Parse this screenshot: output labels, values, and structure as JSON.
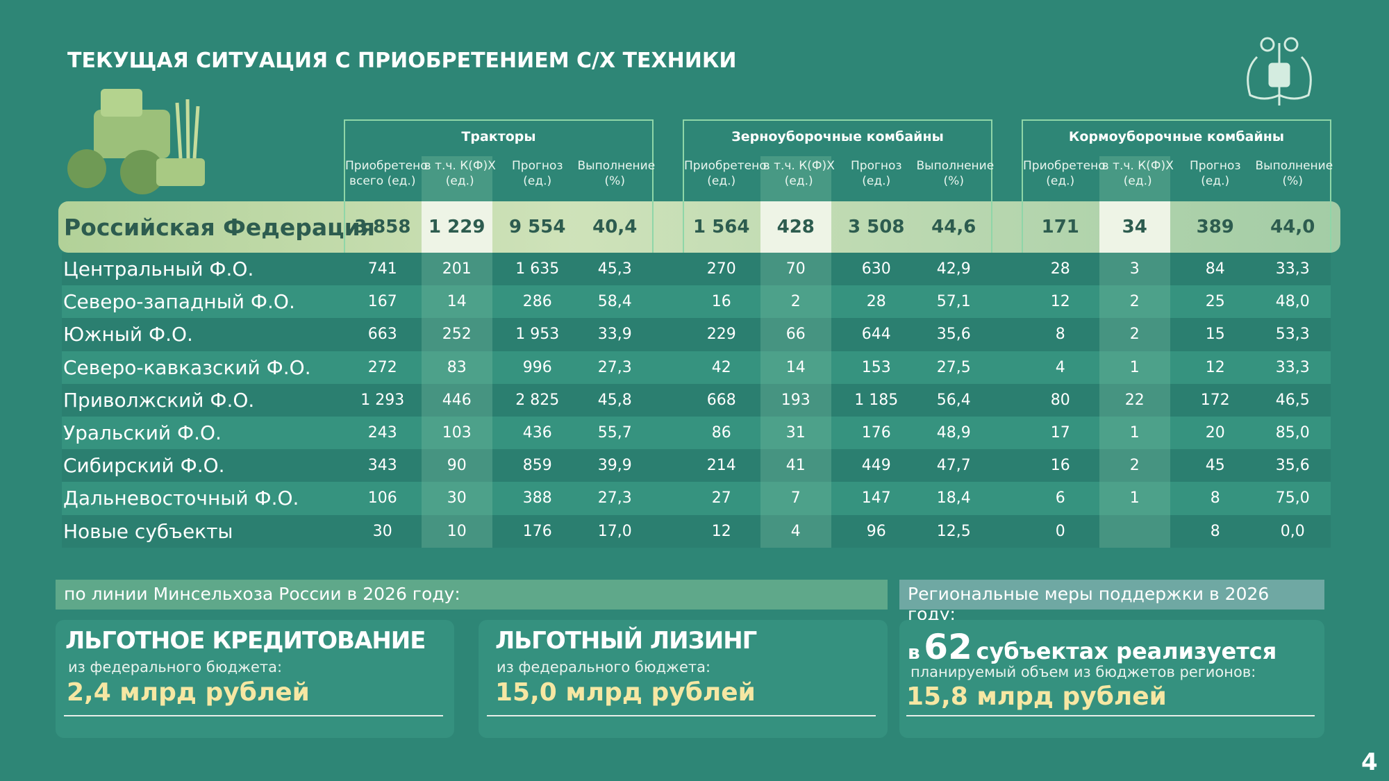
{
  "header": {
    "title": "ТЕКУЩАЯ СИТУАЦИЯ С ПРИОБРЕТЕНИЕМ С/Х ТЕХНИКИ"
  },
  "table": {
    "groups": [
      {
        "title": "Тракторы",
        "columns": [
          "Приобретено всего (ед.)",
          "в т.ч. К(Ф)Х (ед.)",
          "Прогноз (ед.)",
          "Выполнение (%)"
        ]
      },
      {
        "title": "Зерноуборочные комбайны",
        "columns": [
          "Приобретено (ед.)",
          "в т.ч. К(Ф)Х (ед.)",
          "Прогноз (ед.)",
          "Выполнение (%)"
        ]
      },
      {
        "title": "Кормоуборочные комбайны",
        "columns": [
          "Приобретено (ед.)",
          "в т.ч. К(Ф)Х (ед.)",
          "Прогноз (ед.)",
          "Выполнение (%)"
        ]
      }
    ],
    "total": {
      "label": "Российская Федерация",
      "cells": [
        "3 858",
        "1 229",
        "9 554",
        "40,4",
        "1 564",
        "428",
        "3 508",
        "44,6",
        "171",
        "34",
        "389",
        "44,0"
      ]
    },
    "rows": [
      {
        "label": "Центральный Ф.О.",
        "cells": [
          "741",
          "201",
          "1 635",
          "45,3",
          "270",
          "70",
          "630",
          "42,9",
          "28",
          "3",
          "84",
          "33,3"
        ]
      },
      {
        "label": "Северо-западный Ф.О.",
        "cells": [
          "167",
          "14",
          "286",
          "58,4",
          "16",
          "2",
          "28",
          "57,1",
          "12",
          "2",
          "25",
          "48,0"
        ]
      },
      {
        "label": "Южный Ф.О.",
        "cells": [
          "663",
          "252",
          "1 953",
          "33,9",
          "229",
          "66",
          "644",
          "35,6",
          "8",
          "2",
          "15",
          "53,3"
        ]
      },
      {
        "label": "Северо-кавказский Ф.О.",
        "cells": [
          "272",
          "83",
          "996",
          "27,3",
          "42",
          "14",
          "153",
          "27,5",
          "4",
          "1",
          "12",
          "33,3"
        ]
      },
      {
        "label": "Приволжский Ф.О.",
        "cells": [
          "1 293",
          "446",
          "2 825",
          "45,8",
          "668",
          "193",
          "1 185",
          "56,4",
          "80",
          "22",
          "172",
          "46,5"
        ]
      },
      {
        "label": "Уральский Ф.О.",
        "cells": [
          "243",
          "103",
          "436",
          "55,7",
          "86",
          "31",
          "176",
          "48,9",
          "17",
          "1",
          "20",
          "85,0"
        ]
      },
      {
        "label": "Сибирский Ф.О.",
        "cells": [
          "343",
          "90",
          "859",
          "39,9",
          "214",
          "41",
          "449",
          "47,7",
          "16",
          "2",
          "45",
          "35,6"
        ]
      },
      {
        "label": "Дальневосточный Ф.О.",
        "cells": [
          "106",
          "30",
          "388",
          "27,3",
          "27",
          "7",
          "147",
          "18,4",
          "6",
          "1",
          "8",
          "75,0"
        ]
      },
      {
        "label": "Новые субъекты",
        "cells": [
          "30",
          "10",
          "176",
          "17,0",
          "12",
          "4",
          "96",
          "12,5",
          "0",
          null,
          "8",
          "0,0"
        ]
      }
    ]
  },
  "federal": {
    "heading": "по линии Минсельхоза России в 2026 году:",
    "cards": [
      {
        "title": "ЛЬГОТНОЕ КРЕДИТОВАНИЕ",
        "subtitle": "из федерального бюджета:",
        "amount": "2,4 млрд рублей"
      },
      {
        "title": "ЛЬГОТНЫЙ ЛИЗИНГ",
        "subtitle": "из федерального бюджета:",
        "amount": "15,0 млрд рублей"
      }
    ]
  },
  "regional": {
    "heading": "Региональные меры поддержки в 2026 году:",
    "card": {
      "prefix": "в",
      "count": "62",
      "title": "субъектах реализуется",
      "subtitle": "планируемый объем из бюджетов регионов:",
      "amount": "15,8 млрд рублей"
    }
  },
  "page_number": "4"
}
